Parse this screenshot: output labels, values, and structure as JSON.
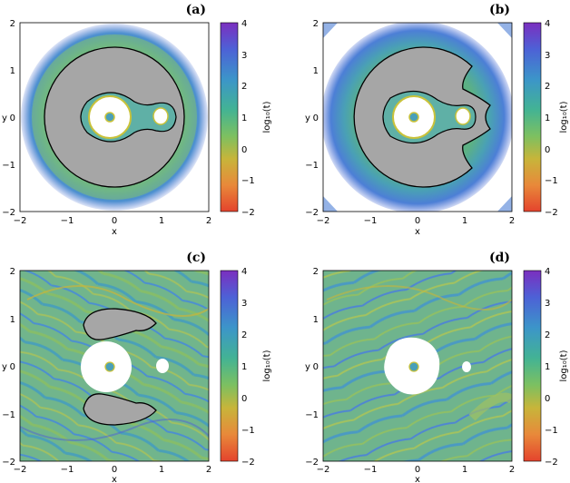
{
  "figure": {
    "panels": [
      {
        "id": "a",
        "label": "(a)",
        "xlabel": "x",
        "ylabel": "y",
        "cbar_label": "log₁₀(t)",
        "variant": "ring_sticky_small"
      },
      {
        "id": "b",
        "label": "(b)",
        "xlabel": "x",
        "ylabel": "y",
        "cbar_label": "log₁₀(t)",
        "variant": "ring_sticky_notched"
      },
      {
        "id": "c",
        "label": "(c)",
        "xlabel": "x",
        "ylabel": "y",
        "cbar_label": "log₁₀(t)",
        "variant": "chaotic_two_lobes"
      },
      {
        "id": "d",
        "label": "(d)",
        "xlabel": "x",
        "ylabel": "y",
        "cbar_label": "log₁₀(t)",
        "variant": "chaotic_none"
      }
    ],
    "x_ticks": [
      "−2",
      "−1",
      "0",
      "1",
      "2"
    ],
    "y_ticks": [
      "2",
      "1",
      "0",
      "−1",
      "−2"
    ],
    "cbar_ticks": [
      "4",
      "3",
      "2",
      "1",
      "0",
      "−1",
      "−2"
    ],
    "colormap": [
      "#7b2fbf",
      "#4d61d6",
      "#3c95c9",
      "#43b394",
      "#7cc061",
      "#c7b53a",
      "#e8893a",
      "#e4432d"
    ],
    "fill_colors": {
      "stable_region": "#a6a6a6",
      "escape_region": "#ffffff",
      "dominant_field": "#70b585"
    }
  }
}
